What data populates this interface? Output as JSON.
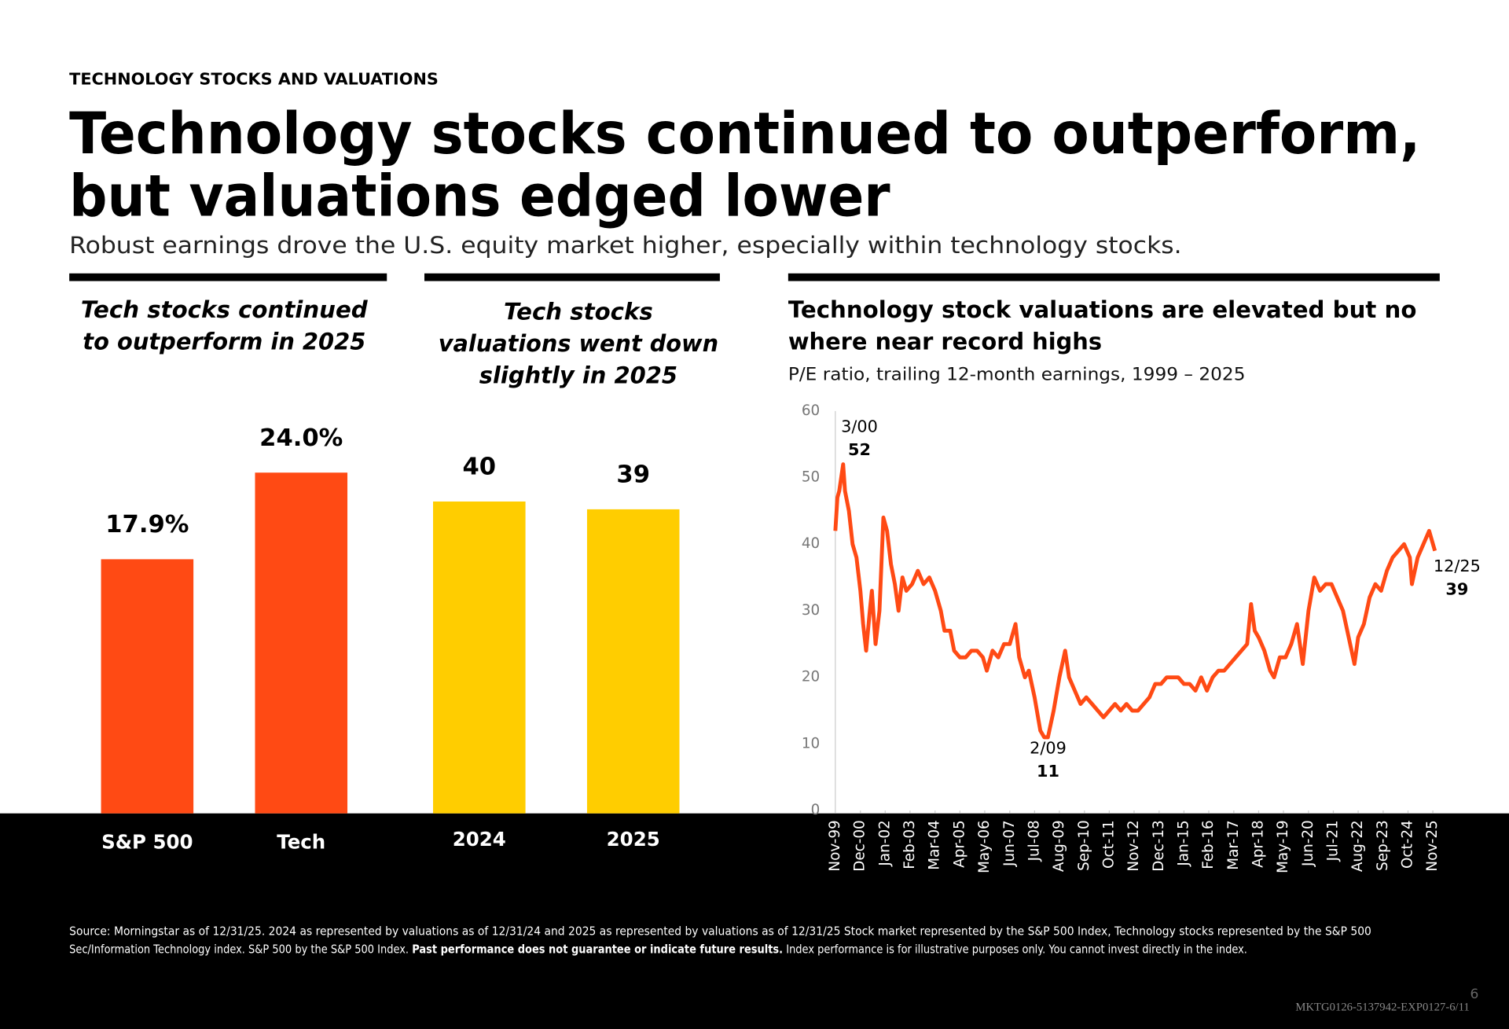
{
  "header": {
    "kicker": "TECHNOLOGY STOCKS AND VALUATIONS",
    "title": [
      "Technology stocks continued to outperform,",
      "but valuations edged lower"
    ],
    "subtitle": "Robust earnings drove the U.S. equity market higher, especially within technology stocks."
  },
  "chart_data": [
    {
      "type": "bar",
      "title": [
        "Tech stocks continued",
        "to outperform in 2025"
      ],
      "categories": [
        "S&P 500",
        "Tech"
      ],
      "values": [
        17.9,
        24.0
      ],
      "value_labels": [
        "17.9%",
        "24.0%"
      ],
      "color": "#ff4a14"
    },
    {
      "type": "bar",
      "title": [
        "Tech stocks",
        "valuations went down",
        "slightly in 2025"
      ],
      "categories": [
        "2024",
        "2025"
      ],
      "values": [
        40,
        39
      ],
      "color": "#ffcd00"
    },
    {
      "type": "line",
      "title": [
        "Technology stock valuations are elevated but no",
        "where near record highs"
      ],
      "subtitle": "P/E ratio, trailing 12-month earnings, 1999 – 2025",
      "x": [
        1999.83,
        1999.92,
        2000.0,
        2000.17,
        2000.25,
        2000.42,
        2000.58,
        2000.75,
        2000.92,
        2001.04,
        2001.17,
        2001.33,
        2001.42,
        2001.58,
        2001.75,
        2001.92,
        2002.08,
        2002.25,
        2002.42,
        2002.58,
        2002.75,
        2002.92,
        2003.17,
        2003.42,
        2003.67,
        2003.92,
        2004.17,
        2004.42,
        2004.58,
        2004.83,
        2005.0,
        2005.25,
        2005.5,
        2005.75,
        2006.0,
        2006.25,
        2006.42,
        2006.67,
        2006.92,
        2007.17,
        2007.42,
        2007.67,
        2007.83,
        2008.08,
        2008.25,
        2008.5,
        2008.75,
        2008.92,
        2009.08,
        2009.33,
        2009.58,
        2009.83,
        2010.0,
        2010.25,
        2010.5,
        2010.75,
        2011.0,
        2011.25,
        2011.5,
        2011.75,
        2012.0,
        2012.25,
        2012.5,
        2012.75,
        2013.0,
        2013.25,
        2013.5,
        2013.75,
        2014.0,
        2014.25,
        2014.5,
        2014.75,
        2015.0,
        2015.25,
        2015.5,
        2015.75,
        2016.0,
        2016.25,
        2016.5,
        2016.75,
        2017.0,
        2017.25,
        2017.5,
        2017.75,
        2017.92,
        2018.08,
        2018.25,
        2018.5,
        2018.75,
        2018.92,
        2019.17,
        2019.42,
        2019.67,
        2019.92,
        2020.17,
        2020.42,
        2020.67,
        2020.92,
        2021.17,
        2021.42,
        2021.67,
        2021.92,
        2022.17,
        2022.42,
        2022.58,
        2022.83,
        2023.08,
        2023.33,
        2023.58,
        2023.83,
        2024.08,
        2024.33,
        2024.58,
        2024.83,
        2024.92,
        2025.17,
        2025.42,
        2025.67,
        2025.92
      ],
      "series": [
        {
          "color": "#ff4a14",
          "values": [
            42,
            47,
            48,
            52,
            48,
            45,
            40,
            38,
            33,
            28,
            24,
            30,
            33,
            25,
            30,
            44,
            42,
            37,
            34,
            30,
            35,
            33,
            34,
            36,
            34,
            35,
            33,
            30,
            27,
            27,
            24,
            23,
            23,
            24,
            24,
            23,
            21,
            24,
            23,
            25,
            25,
            28,
            23,
            20,
            21,
            17,
            12,
            11,
            11,
            15,
            20,
            24,
            20,
            18,
            16,
            17,
            16,
            15,
            14,
            15,
            16,
            15,
            16,
            15,
            15,
            16,
            17,
            19,
            19,
            20,
            20,
            20,
            19,
            19,
            18,
            20,
            18,
            20,
            21,
            21,
            22,
            23,
            24,
            25,
            31,
            27,
            26,
            24,
            21,
            20,
            23,
            23,
            25,
            28,
            22,
            30,
            35,
            33,
            34,
            34,
            32,
            30,
            26,
            22,
            26,
            28,
            32,
            34,
            33,
            36,
            38,
            39,
            40,
            38,
            34,
            38,
            40,
            42,
            39
          ]
        }
      ],
      "xlim": [
        1999.83,
        2025.92
      ],
      "xticks": [
        {
          "value": 1999.83,
          "label": "Nov-99"
        },
        {
          "value": 2000.92,
          "label": "Dec-00"
        },
        {
          "value": 2002.0,
          "label": "Jan-02"
        },
        {
          "value": 2003.08,
          "label": "Feb-03"
        },
        {
          "value": 2004.17,
          "label": "Mar-04"
        },
        {
          "value": 2005.25,
          "label": "Apr-05"
        },
        {
          "value": 2006.33,
          "label": "May-06"
        },
        {
          "value": 2007.42,
          "label": "Jun-07"
        },
        {
          "value": 2008.5,
          "label": "Jul-08"
        },
        {
          "value": 2009.58,
          "label": "Aug-09"
        },
        {
          "value": 2010.67,
          "label": "Sep-10"
        },
        {
          "value": 2011.75,
          "label": "Oct-11"
        },
        {
          "value": 2012.83,
          "label": "Nov-12"
        },
        {
          "value": 2013.92,
          "label": "Dec-13"
        },
        {
          "value": 2015.0,
          "label": "Jan-15"
        },
        {
          "value": 2016.08,
          "label": "Feb-16"
        },
        {
          "value": 2017.17,
          "label": "Mar-17"
        },
        {
          "value": 2018.25,
          "label": "Apr-18"
        },
        {
          "value": 2019.33,
          "label": "May-19"
        },
        {
          "value": 2020.42,
          "label": "Jun-20"
        },
        {
          "value": 2021.5,
          "label": "Jul-21"
        },
        {
          "value": 2022.58,
          "label": "Aug-22"
        },
        {
          "value": 2023.67,
          "label": "Sep-23"
        },
        {
          "value": 2024.75,
          "label": "Oct-24"
        },
        {
          "value": 2025.83,
          "label": "Nov-25"
        }
      ],
      "ylim": [
        0,
        60
      ],
      "yticks": [
        0,
        10,
        20,
        30,
        40,
        50,
        60
      ],
      "grid": false,
      "annotations": [
        {
          "label": "3/00",
          "value": 52
        },
        {
          "label": "2/09",
          "value": 11
        },
        {
          "label": "12/25",
          "value": 39
        }
      ]
    }
  ],
  "footer": {
    "source_line1": "Source:  Morningstar as of 12/31/25. 2024 as represented by valuations as of 12/31/24 and 2025 as represented by valuations as of 12/31/25 Stock market represented by the S&P 500 Index, Technology stocks represented by the S&P 500",
    "source_line2": "Sec/Information Technology index.   S&P 500 by the S&P 500 Index. ",
    "disclaimer": "Past performance does not guarantee or indicate future results.",
    "disclaimer_tail": " Index performance is for illustrative purposes only. You cannot invest directly in the index.",
    "page_number": "6",
    "code": "MKTG0126-5137942-EXP0127-6/11"
  }
}
